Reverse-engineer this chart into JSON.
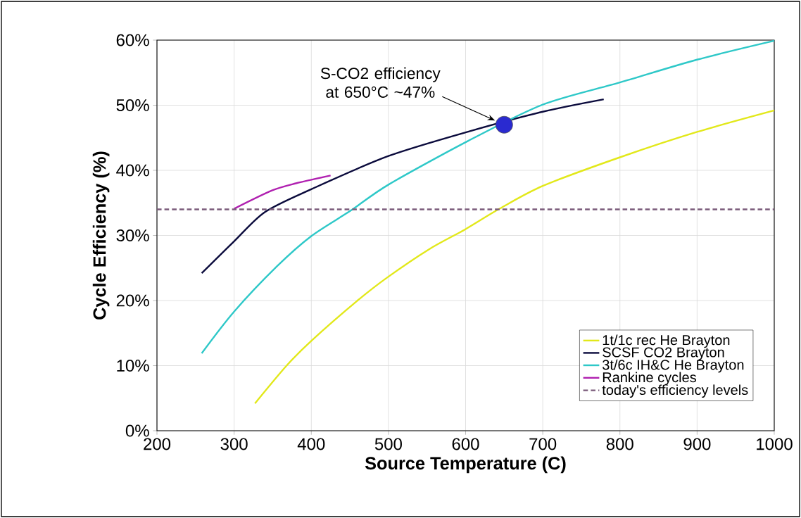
{
  "chart_data": {
    "type": "line",
    "xlabel": "Source Temperature (C)",
    "ylabel": "Cycle Efficiency (%)",
    "xlim": [
      200,
      1000
    ],
    "xticks": [
      200,
      300,
      400,
      500,
      600,
      700,
      800,
      900,
      1000
    ],
    "ylim": [
      0,
      60
    ],
    "yticks": [
      {
        "value": 0,
        "label": "0%"
      },
      {
        "value": 10,
        "label": "10%"
      },
      {
        "value": 20,
        "label": "20%"
      },
      {
        "value": 30,
        "label": "30%"
      },
      {
        "value": 40,
        "label": "40%"
      },
      {
        "value": 50,
        "label": "50%"
      },
      {
        "value": 60,
        "label": "60%"
      }
    ],
    "grid": true,
    "legend": "bottom right",
    "series": [
      {
        "name": "1t/1c rec He Brayton",
        "color": "#e2e81a",
        "x": [
          327,
          368,
          400,
          459,
          498,
          553,
          599,
          644,
          700,
          800,
          900,
          1000
        ],
        "values": [
          4.2,
          10.0,
          13.8,
          19.9,
          23.5,
          27.9,
          30.9,
          34.1,
          37.6,
          42.0,
          45.9,
          49.2
        ]
      },
      {
        "name": "SCSF CO2 Brayton",
        "color": "#0a0a3c",
        "x": [
          258,
          300,
          340,
          400,
          500,
          608,
          700,
          779
        ],
        "values": [
          24.2,
          29.1,
          33.6,
          37.1,
          42.2,
          46.1,
          49.0,
          50.9
        ]
      },
      {
        "name": "3t/6c IH&C He Brayton",
        "color": "#2ec8c8",
        "x": [
          258,
          300,
          355,
          400,
          451,
          500,
          603,
          700,
          800,
          900,
          1000
        ],
        "values": [
          11.9,
          18.3,
          25.2,
          29.9,
          33.8,
          37.8,
          44.5,
          50.1,
          53.5,
          57.0,
          59.9
        ]
      },
      {
        "name": "Rankine cycles",
        "color": "#b020b0",
        "x": [
          300,
          349,
          380,
          425
        ],
        "values": [
          34.1,
          36.9,
          38.0,
          39.2
        ]
      },
      {
        "name": "today's efficiency levels",
        "color": "#7a5a7a",
        "line_style": "dashed",
        "x": [
          200,
          1000
        ],
        "values": [
          34,
          34
        ]
      },
      {
        "type": "scatter",
        "marker": "circle",
        "color": "#2a2ad0",
        "x": [
          650
        ],
        "values": [
          47
        ]
      }
    ],
    "annotations": [
      "S-CO2 efficiency at 650°C ~47%"
    ]
  }
}
